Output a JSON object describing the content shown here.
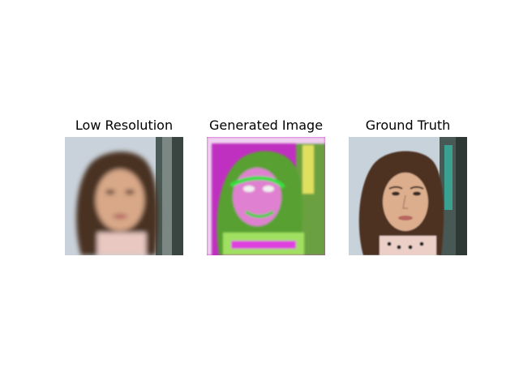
{
  "figure": {
    "panels": [
      {
        "title": "Low Resolution"
      },
      {
        "title": "Generated Image"
      },
      {
        "title": "Ground Truth"
      }
    ]
  },
  "colors": {
    "background": "#ffffff",
    "title_text": "#000000"
  }
}
